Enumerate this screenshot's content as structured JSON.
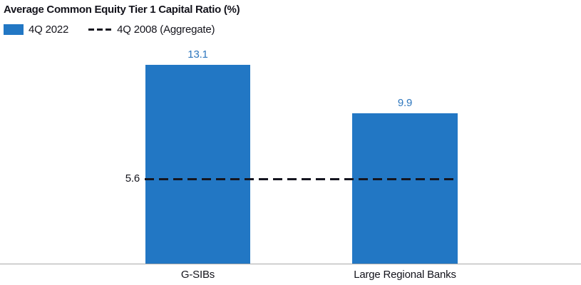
{
  "chart_data": {
    "type": "bar",
    "title": "Average Common Equity Tier 1 Capital Ratio (%)",
    "categories": [
      "G-SIBs",
      "Large Regional Banks"
    ],
    "series": [
      {
        "name": "4Q 2022",
        "type": "bar",
        "values": [
          13.1,
          9.9
        ]
      },
      {
        "name": "4Q 2008 (Aggregate)",
        "type": "reference_line",
        "value": 5.6,
        "style": "dashed"
      }
    ],
    "value_labels": [
      "13.1",
      "9.9"
    ],
    "reference_value_label": "5.6",
    "xlabel": "",
    "ylabel": "",
    "ylim": [
      0,
      17.4
    ],
    "grid": false,
    "legend_position": "top-left",
    "colors": {
      "bar": "#2277C4",
      "bar_value_label": "#2E77BE",
      "reference_line": "#15151F",
      "text": "#14141C",
      "axis_line": "#A9A9A9"
    }
  }
}
